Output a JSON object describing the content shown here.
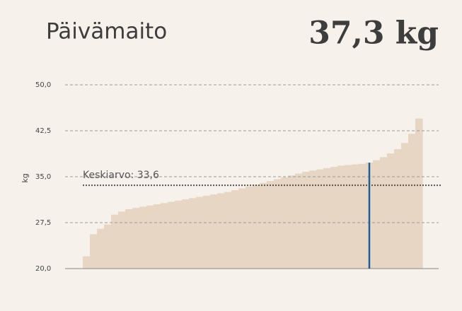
{
  "chart_data": {
    "type": "sorted-bar",
    "title": "Päivämaito",
    "highlight": {
      "value": 37.3,
      "label": "37,3 kg",
      "color": "#1f5c99"
    },
    "ylabel": "kg",
    "values": [
      22.0,
      25.6,
      26.5,
      27.2,
      28.8,
      29.3,
      29.7,
      29.9,
      30.1,
      30.3,
      30.5,
      30.7,
      30.9,
      31.1,
      31.3,
      31.5,
      31.7,
      31.9,
      32.1,
      32.3,
      32.5,
      32.8,
      33.1,
      33.4,
      33.7,
      34.0,
      34.3,
      34.6,
      34.9,
      35.2,
      35.5,
      35.8,
      36.0,
      36.2,
      36.4,
      36.6,
      36.8,
      36.9,
      37.0,
      37.1,
      37.3,
      37.7,
      38.2,
      38.8,
      39.5,
      40.5,
      42.0,
      44.5
    ],
    "color": "#e6d6c3",
    "mean": {
      "value": 33.6,
      "label": "Keskiarvo: 33,6"
    },
    "ylim": [
      20,
      50
    ],
    "yticks": [
      {
        "value": 20,
        "label": "20,0"
      },
      {
        "value": 27.5,
        "label": "27,5"
      },
      {
        "value": 35,
        "label": "35,0"
      },
      {
        "value": 42.5,
        "label": "42,5"
      },
      {
        "value": 50,
        "label": "50,0"
      }
    ],
    "grid": true
  }
}
